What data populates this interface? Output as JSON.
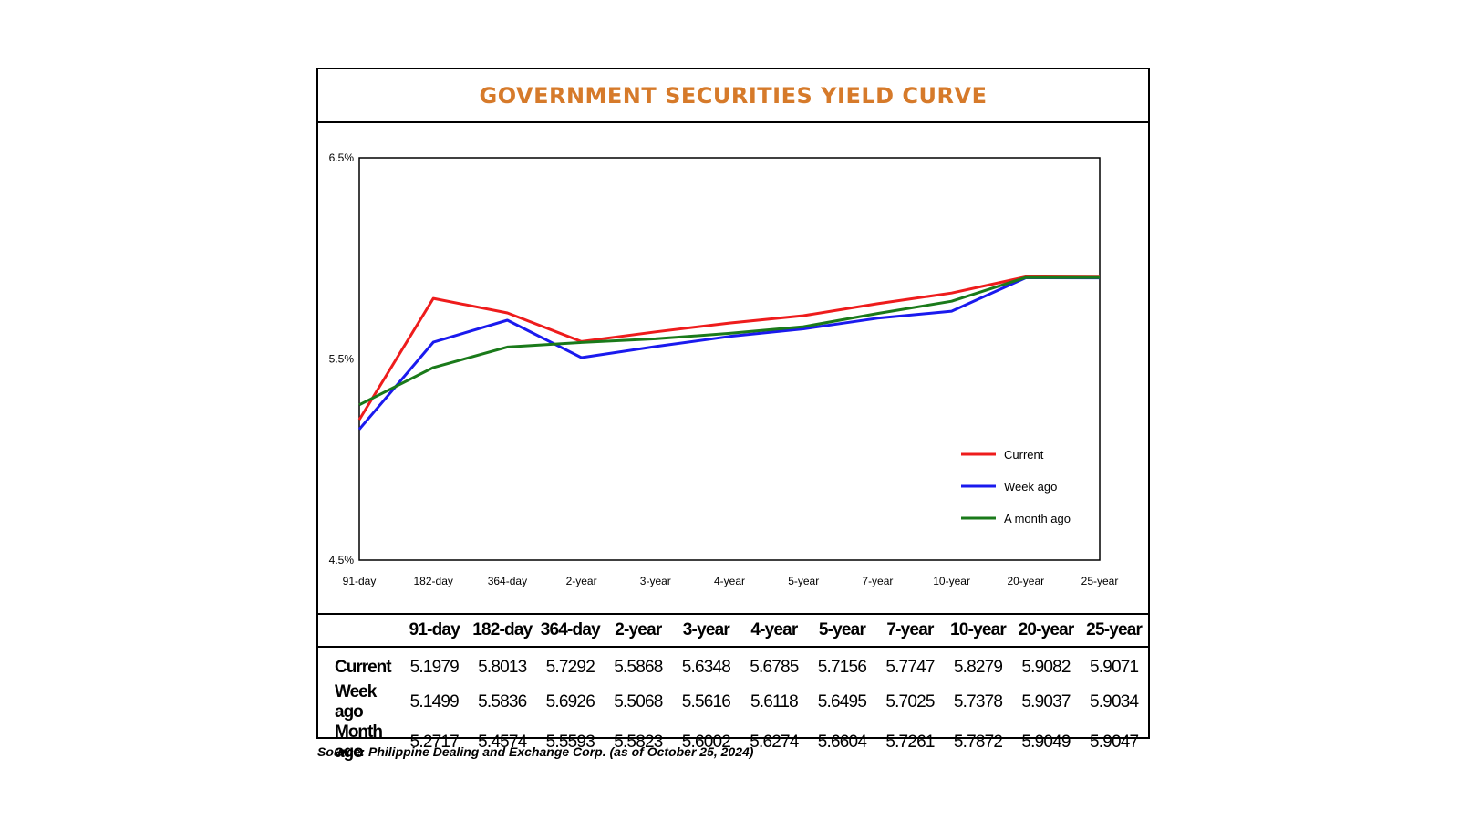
{
  "chart_data": {
    "type": "line",
    "title": "GOVERNMENT SECURITIES YIELD CURVE",
    "categories": [
      "91-day",
      "182-day",
      "364-day",
      "2-year",
      "3-year",
      "4-year",
      "5-year",
      "7-year",
      "10-year",
      "20-year",
      "25-year"
    ],
    "ylim": [
      4.5,
      6.5
    ],
    "y_ticks": [
      "4.5%",
      "5.5%",
      "6.5%"
    ],
    "y_tick_values": [
      4.5,
      5.5,
      6.5
    ],
    "grid": false,
    "legend_position": "bottom-right",
    "series": [
      {
        "name": "Current",
        "color": "#ee1c1c",
        "values": [
          5.1979,
          5.8013,
          5.7292,
          5.5868,
          5.6348,
          5.6785,
          5.7156,
          5.7747,
          5.8279,
          5.9082,
          5.9071
        ]
      },
      {
        "name": "Week ago",
        "color": "#1a1aee",
        "values": [
          5.1499,
          5.5836,
          5.6926,
          5.5068,
          5.5616,
          5.6118,
          5.6495,
          5.7025,
          5.7378,
          5.9037,
          5.9034
        ]
      },
      {
        "name": "A month ago",
        "color": "#1a7a1a",
        "values": [
          5.2717,
          5.4574,
          5.5593,
          5.5823,
          5.6002,
          5.6274,
          5.6604,
          5.7261,
          5.7872,
          5.9049,
          5.9047
        ]
      }
    ]
  },
  "table": {
    "headers": [
      "91-day",
      "182-day",
      "364-day",
      "2-year",
      "3-year",
      "4-year",
      "5-year",
      "7-year",
      "10-year",
      "20-year",
      "25-year"
    ],
    "rows": [
      {
        "label": "Current",
        "values": [
          "5.1979",
          "5.8013",
          "5.7292",
          "5.5868",
          "5.6348",
          "5.6785",
          "5.7156",
          "5.7747",
          "5.8279",
          "5.9082",
          "5.9071"
        ]
      },
      {
        "label": "Week ago",
        "values": [
          "5.1499",
          "5.5836",
          "5.6926",
          "5.5068",
          "5.5616",
          "5.6118",
          "5.6495",
          "5.7025",
          "5.7378",
          "5.9037",
          "5.9034"
        ]
      },
      {
        "label": "Month ago",
        "values": [
          "5.2717",
          "5.4574",
          "5.5593",
          "5.5823",
          "5.6002",
          "5.6274",
          "5.6604",
          "5.7261",
          "5.7872",
          "5.9049",
          "5.9047"
        ]
      }
    ]
  },
  "source": "Source: Philippine Dealing and Exchange Corp. (as of October 25, 2024)"
}
